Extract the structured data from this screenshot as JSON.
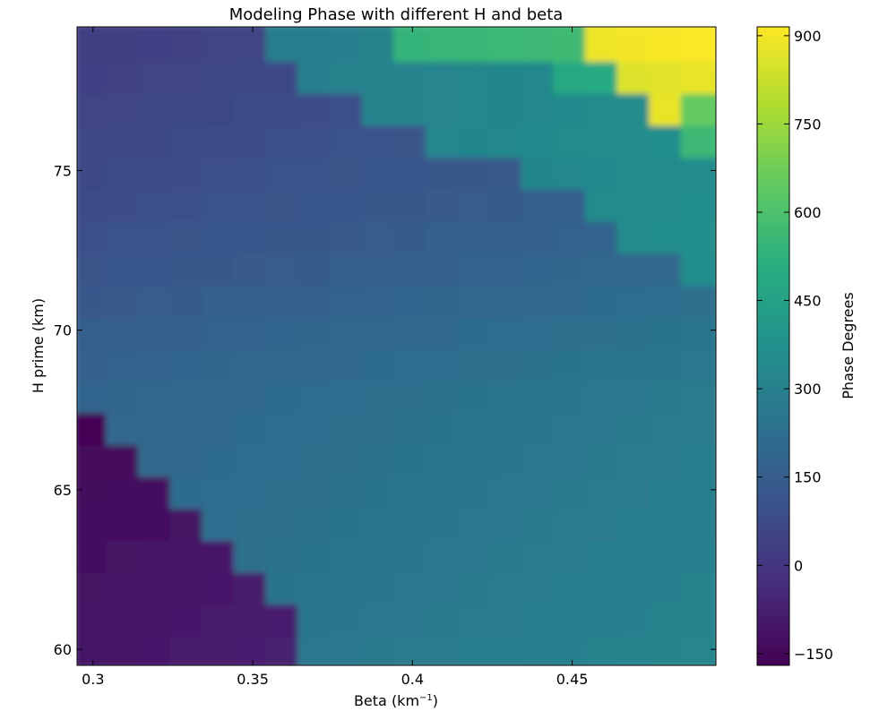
{
  "chart_data": {
    "type": "heatmap",
    "title": "Modeling Phase with different H and beta",
    "xlabel": "Beta (km",
    "xlabel_sup": "−1",
    "xlabel_suffix": ")",
    "ylabel": "H prime (km)",
    "colorbar_label": "Phase Degrees",
    "colormap": "viridis",
    "xlim": [
      0.295,
      0.495
    ],
    "ylim": [
      59.5,
      79.5
    ],
    "clim": [
      -170,
      915
    ],
    "xticks": [
      0.3,
      0.35,
      0.4,
      0.45
    ],
    "xtick_labels": [
      "0.3",
      "0.35",
      "0.4",
      "0.45"
    ],
    "yticks": [
      60,
      65,
      70,
      75
    ],
    "ytick_labels": [
      "60",
      "65",
      "70",
      "75"
    ],
    "cticks": [
      -150,
      0,
      150,
      300,
      450,
      600,
      750,
      900
    ],
    "ctick_labels": [
      "−150",
      "0",
      "150",
      "300",
      "450",
      "600",
      "750",
      "900"
    ],
    "beta": [
      0.3,
      0.31,
      0.32,
      0.33,
      0.34,
      0.35,
      0.36,
      0.37,
      0.38,
      0.39,
      0.4,
      0.41,
      0.42,
      0.43,
      0.44,
      0.45,
      0.46,
      0.47,
      0.48,
      0.49
    ],
    "h_prime": [
      60,
      61,
      62,
      63,
      64,
      65,
      66,
      67,
      68,
      69,
      70,
      71,
      72,
      73,
      74,
      75,
      76,
      77,
      78,
      79
    ],
    "phase": [
      [
        -105,
        -100,
        -95,
        -90,
        -85,
        -80,
        -75,
        260,
        265,
        270,
        275,
        280,
        285,
        290,
        295,
        300,
        305,
        310,
        315,
        320
      ],
      [
        -110,
        -105,
        -100,
        -95,
        -90,
        -85,
        -80,
        250,
        255,
        260,
        265,
        270,
        275,
        280,
        285,
        290,
        295,
        300,
        305,
        310
      ],
      [
        -115,
        -110,
        -105,
        -100,
        -95,
        -90,
        240,
        245,
        250,
        255,
        260,
        265,
        270,
        275,
        280,
        285,
        290,
        295,
        300,
        305
      ],
      [
        -120,
        -115,
        -110,
        -105,
        -100,
        230,
        235,
        240,
        245,
        250,
        255,
        260,
        265,
        270,
        275,
        280,
        285,
        290,
        295,
        300
      ],
      [
        -130,
        -125,
        -120,
        -115,
        220,
        225,
        230,
        235,
        240,
        245,
        250,
        255,
        260,
        265,
        270,
        275,
        280,
        285,
        290,
        295
      ],
      [
        -140,
        -135,
        -130,
        210,
        215,
        220,
        225,
        230,
        235,
        240,
        245,
        250,
        255,
        260,
        265,
        270,
        275,
        280,
        285,
        290
      ],
      [
        -150,
        -145,
        200,
        205,
        210,
        215,
        220,
        225,
        230,
        235,
        240,
        245,
        250,
        255,
        260,
        265,
        270,
        275,
        280,
        285
      ],
      [
        -160,
        190,
        195,
        200,
        205,
        210,
        215,
        220,
        225,
        230,
        235,
        240,
        245,
        250,
        255,
        260,
        265,
        270,
        275,
        280
      ],
      [
        180,
        185,
        190,
        195,
        200,
        205,
        210,
        215,
        220,
        225,
        230,
        235,
        240,
        245,
        250,
        255,
        260,
        265,
        270,
        275
      ],
      [
        165,
        170,
        175,
        180,
        185,
        190,
        195,
        200,
        205,
        210,
        215,
        220,
        225,
        230,
        235,
        240,
        245,
        250,
        255,
        260
      ],
      [
        150,
        155,
        160,
        165,
        170,
        175,
        180,
        185,
        190,
        195,
        200,
        205,
        210,
        215,
        220,
        225,
        230,
        235,
        240,
        245
      ],
      [
        130,
        135,
        140,
        145,
        150,
        155,
        160,
        165,
        170,
        175,
        180,
        185,
        190,
        195,
        200,
        205,
        210,
        215,
        220,
        225
      ],
      [
        110,
        115,
        120,
        125,
        130,
        135,
        140,
        145,
        150,
        155,
        160,
        165,
        170,
        175,
        180,
        185,
        190,
        195,
        200,
        360
      ],
      [
        95,
        100,
        105,
        110,
        115,
        120,
        125,
        130,
        135,
        140,
        145,
        150,
        155,
        160,
        165,
        170,
        175,
        355,
        360,
        365
      ],
      [
        80,
        85,
        90,
        95,
        100,
        105,
        110,
        115,
        120,
        125,
        130,
        135,
        140,
        145,
        150,
        155,
        345,
        350,
        355,
        360
      ],
      [
        70,
        75,
        80,
        85,
        90,
        95,
        100,
        105,
        110,
        115,
        120,
        125,
        130,
        135,
        330,
        335,
        340,
        345,
        350,
        355
      ],
      [
        60,
        65,
        70,
        75,
        80,
        85,
        90,
        95,
        100,
        105,
        110,
        325,
        330,
        335,
        340,
        345,
        350,
        355,
        360,
        560
      ],
      [
        50,
        55,
        60,
        65,
        70,
        75,
        80,
        85,
        90,
        310,
        315,
        320,
        325,
        330,
        335,
        340,
        345,
        350,
        880,
        650
      ],
      [
        40,
        45,
        50,
        55,
        60,
        65,
        70,
        300,
        305,
        310,
        315,
        320,
        325,
        330,
        335,
        480,
        490,
        860,
        870,
        880
      ],
      [
        30,
        35,
        40,
        45,
        50,
        55,
        290,
        295,
        300,
        305,
        540,
        545,
        550,
        555,
        560,
        570,
        890,
        900,
        905,
        910
      ]
    ]
  }
}
